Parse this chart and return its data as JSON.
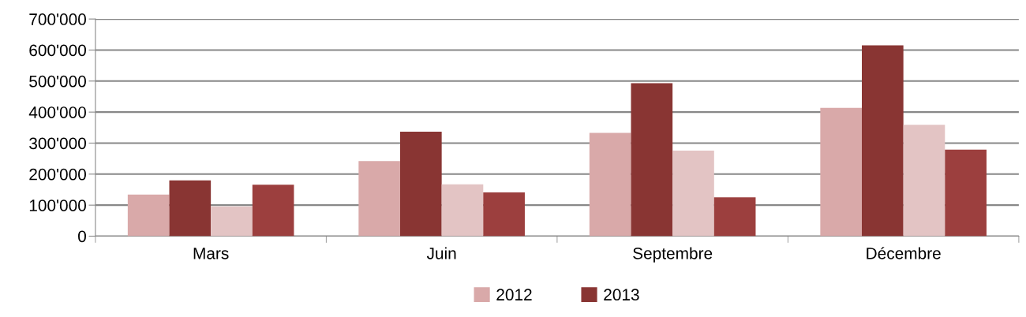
{
  "chart_data": {
    "type": "bar",
    "categories": [
      "Mars",
      "Juin",
      "Septembre",
      "Décembre"
    ],
    "series": [
      {
        "name": "2012",
        "color": "#d9a9a9",
        "values": [
          134000,
          242000,
          333000,
          414000
        ]
      },
      {
        "name": "2013",
        "color": "#893533",
        "values": [
          180000,
          337000,
          493000,
          615000
        ]
      },
      {
        "color": "#e3c4c4",
        "values": [
          96000,
          167000,
          276000,
          359000
        ]
      },
      {
        "color": "#9c3f3e",
        "values": [
          166000,
          141000,
          125000,
          279000
        ]
      }
    ],
    "ylim": [
      0,
      700000
    ],
    "yticks": [
      0,
      {
        "value": 100000,
        "label": "100'000"
      },
      {
        "value": 200000,
        "label": "200'000"
      },
      {
        "value": 300000,
        "label": "300'000"
      },
      {
        "value": 400000,
        "label": "400'000"
      },
      {
        "value": 500000,
        "label": "500'000"
      },
      {
        "value": 600000,
        "label": "600'000"
      },
      {
        "value": 700000,
        "label": "700'000"
      }
    ],
    "grid": "y",
    "legend": "bottom"
  }
}
